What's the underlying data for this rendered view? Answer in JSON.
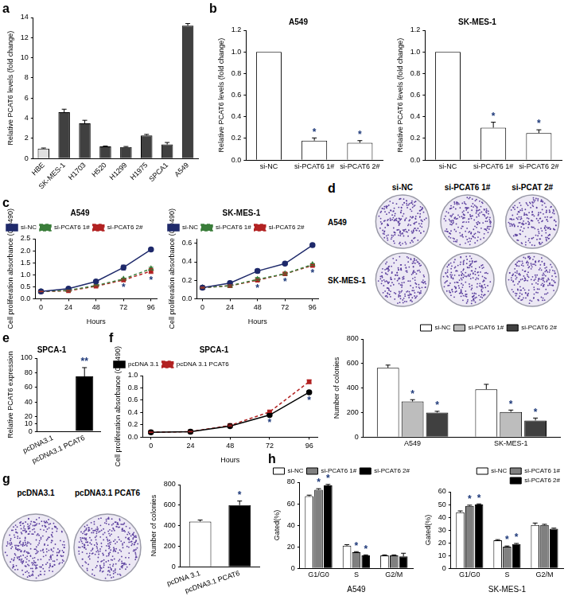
{
  "panel_labels": [
    "a",
    "b",
    "c",
    "d",
    "e",
    "f",
    "g",
    "h"
  ],
  "plates": [
    {
      "columns": [
        "si-NC",
        "si-PCAT6 1#",
        "si-PCAT 2#"
      ],
      "rows": [
        "A549",
        "SK-MES-1"
      ]
    },
    {
      "columns": [
        "pcDNA3.1",
        "pcDNA3.1 PCAT6"
      ]
    }
  ],
  "chart_data": [
    {
      "type": "bar",
      "ylabel": "Relative PCAT6 levels (fold change)",
      "categories": [
        "HBE",
        "SK-MES-1",
        "H1703",
        "H520",
        "H1299",
        "H1975",
        "SPCA1",
        "A549"
      ],
      "values": [
        1,
        4.6,
        3.5,
        1.2,
        1.15,
        2.3,
        1.4,
        13.2
      ],
      "errors": [
        0.05,
        0.3,
        0.3,
        0.05,
        0.05,
        0.1,
        0.2,
        0.2
      ],
      "colors": [
        "#e0e0e0",
        "#404040",
        "#404040",
        "#404040",
        "#404040",
        "#404040",
        "#404040",
        "#404040"
      ],
      "ylim": [
        0,
        14
      ],
      "yticks": [
        0,
        2,
        4,
        6,
        8,
        10,
        12,
        14
      ],
      "grid": false
    },
    {
      "type": "bar",
      "title": "A549",
      "ylabel": "Relative PCAT6 levels (fold change)",
      "categories": [
        "si-NC",
        "si-PCAT6 1#",
        "si-PCAT6 2#"
      ],
      "values": [
        1,
        0.18,
        0.16
      ],
      "errors": [
        0,
        0.025,
        0.02
      ],
      "significance": [
        null,
        "*",
        "*"
      ],
      "color": "#ffffff",
      "ylim": [
        0,
        1.2
      ],
      "yticks": [
        {
          "value": 0,
          "label": "0.0"
        },
        0.2,
        0.4,
        0.6,
        0.8,
        {
          "value": 1,
          "label": "1.0"
        },
        1.2
      ],
      "grid": false
    },
    {
      "type": "bar",
      "title": "SK-MES-1",
      "ylabel": "Relative PCAT6 levels (fold change)",
      "categories": [
        "si-NC",
        "si-PCAT6 1#",
        "si-PCAT6 2#"
      ],
      "values": [
        1,
        0.3,
        0.25
      ],
      "errors": [
        0,
        0.05,
        0.03
      ],
      "significance": [
        null,
        "*",
        "*"
      ],
      "color": "#ffffff",
      "ylim": [
        0,
        1.2
      ],
      "yticks": [
        {
          "value": 0,
          "label": "0.0"
        },
        0.2,
        0.4,
        0.6,
        0.8,
        {
          "value": 1,
          "label": "1.0"
        },
        1.2
      ],
      "grid": false
    },
    {
      "type": "line",
      "title": "A549",
      "xlabel": "Hours",
      "ylabel": "Cell proliferation absorbance (OD490)",
      "x": [
        0,
        24,
        48,
        72,
        96
      ],
      "xlim": [
        -5,
        101
      ],
      "xticks": [
        0,
        24,
        48,
        72,
        96
      ],
      "ylim": [
        0,
        2.5
      ],
      "yticks": [
        {
          "value": 0,
          "label": "0.0"
        },
        0.5,
        {
          "value": 1,
          "label": "1.0"
        },
        1.5,
        {
          "value": 2,
          "label": "2.0"
        },
        2.5
      ],
      "series": [
        {
          "name": "si-NC",
          "color": "#1f2a6b",
          "marker": "circle",
          "line_style": "solid",
          "values": [
            0.3,
            0.42,
            0.72,
            1.3,
            2.05
          ],
          "errors": [
            0.01,
            0.02,
            0.03,
            0.1,
            0.05
          ]
        },
        {
          "name": "si-PCAT6 1#",
          "color": "#3a7d3a",
          "marker": "triangle",
          "line_style": "dashed",
          "values": [
            0.3,
            0.35,
            0.55,
            0.82,
            1.25
          ],
          "errors": [
            0.01,
            0.02,
            0.02,
            0.03,
            0.06
          ]
        },
        {
          "name": "si-PCAT6 2#",
          "color": "#b22222",
          "marker": "square",
          "line_style": "dashed",
          "values": [
            0.3,
            0.33,
            0.52,
            0.78,
            1.15
          ],
          "errors": [
            0.01,
            0.02,
            0.02,
            0.03,
            0.1
          ]
        }
      ],
      "significance": [
        null,
        null,
        null,
        "*",
        "*"
      ],
      "legend": "upper left",
      "grid": false
    },
    {
      "type": "line",
      "title": "SK-MES-1",
      "xlabel": "Hours",
      "ylabel": "Cell proliferation absorbance (OD490)",
      "x": [
        0,
        24,
        48,
        72,
        96
      ],
      "xlim": [
        -5,
        101
      ],
      "xticks": [
        0,
        24,
        48,
        72,
        96
      ],
      "ylim": [
        0,
        0.65
      ],
      "yticks": [
        {
          "value": 0,
          "label": "0.0"
        },
        0.2,
        0.4,
        0.6
      ],
      "series": [
        {
          "name": "si-NC",
          "color": "#1f2a6b",
          "marker": "circle",
          "line_style": "solid",
          "values": [
            0.12,
            0.17,
            0.3,
            0.38,
            0.58
          ],
          "errors": [
            0.005,
            0.02,
            0.02,
            0.01,
            0.015
          ]
        },
        {
          "name": "si-PCAT6 1#",
          "color": "#3a7d3a",
          "marker": "triangle",
          "line_style": "dashed",
          "values": [
            0.12,
            0.14,
            0.21,
            0.27,
            0.37
          ],
          "errors": [
            0.005,
            0.01,
            0.02,
            0.01,
            0.01
          ]
        },
        {
          "name": "si-PCAT6 2#",
          "color": "#b22222",
          "marker": "square",
          "line_style": "dashed",
          "values": [
            0.12,
            0.14,
            0.2,
            0.27,
            0.36
          ],
          "errors": [
            0.005,
            0.01,
            0.01,
            0.01,
            0.01
          ]
        }
      ],
      "significance": [
        null,
        null,
        "*",
        "*",
        "*"
      ],
      "legend": "upper left",
      "grid": false
    },
    {
      "type": "bar",
      "ylabel": "Number of colonies",
      "categories": [
        "A549",
        "SK-MES-1"
      ],
      "series": [
        {
          "name": "si-NC",
          "color": "#ffffff",
          "values": [
            565,
            390
          ],
          "errors": [
            22,
            40
          ]
        },
        {
          "name": "si-PCAT6 1#",
          "color": "#bdbdbd",
          "values": [
            290,
            205
          ],
          "errors": [
            15,
            15
          ],
          "significance": [
            "*",
            "*"
          ]
        },
        {
          "name": "si-PCAT6 2#",
          "color": "#404040",
          "values": [
            200,
            135
          ],
          "errors": [
            10,
            20
          ],
          "significance": [
            "*",
            "*"
          ]
        }
      ],
      "ylim": [
        0,
        800
      ],
      "yticks": [
        0,
        200,
        400,
        600,
        800
      ],
      "legend": "upper right",
      "grid": false
    },
    {
      "type": "bar",
      "title": "SPCA-1",
      "ylabel": "Relative PCAT6 expression",
      "categories": [
        "pcDNA3.1",
        "pcDNA3.1 PCAT6"
      ],
      "values": [
        1,
        75
      ],
      "errors": [
        0,
        12
      ],
      "significance": [
        null,
        "**"
      ],
      "colors": [
        "#ffffff",
        "#000000"
      ],
      "ylim": [
        0,
        100
      ],
      "yticks": [
        0,
        10,
        20,
        40,
        60,
        80,
        100
      ],
      "grid": false
    },
    {
      "type": "line",
      "title": "SPCA-1",
      "xlabel": "Hours",
      "ylabel": "Cell proliferation absorbance (OD490)",
      "x": [
        0,
        24,
        48,
        72,
        96
      ],
      "xlim": [
        -5,
        101
      ],
      "xticks": [
        0,
        24,
        48,
        72,
        96
      ],
      "ylim": [
        0,
        1
      ],
      "yticks": [
        {
          "value": 0,
          "label": "0.0"
        },
        0.2,
        0.4,
        0.6,
        0.8,
        {
          "value": 1,
          "label": "1.0"
        }
      ],
      "series": [
        {
          "name": "pcDNA 3.1",
          "color": "#000000",
          "marker": "circle",
          "line_style": "solid",
          "values": [
            0.08,
            0.09,
            0.18,
            0.36,
            0.73
          ],
          "errors": [
            0.005,
            0.005,
            0.01,
            0.01,
            0.02
          ]
        },
        {
          "name": "pcDNA 3.1 PCAT6",
          "color": "#b22222",
          "marker": "square",
          "line_style": "dashed",
          "values": [
            0.08,
            0.09,
            0.19,
            0.41,
            0.9
          ],
          "errors": [
            0.005,
            0.005,
            0.01,
            0.01,
            0.03
          ]
        }
      ],
      "significance": [
        null,
        null,
        null,
        "*",
        "*"
      ],
      "legend": "upper left",
      "grid": false
    },
    {
      "type": "bar",
      "ylabel": "Number of colonies",
      "categories": [
        "pcDNA 3.1",
        "pcDNA3.1 PCAT6"
      ],
      "values": [
        440,
        600
      ],
      "errors": [
        15,
        40
      ],
      "significance": [
        null,
        "*"
      ],
      "colors": [
        "#ffffff",
        "#000000"
      ],
      "ylim": [
        0,
        800
      ],
      "yticks": [
        0,
        200,
        400,
        600,
        800
      ],
      "grid": false
    },
    {
      "type": "bar",
      "xlabel": "A549",
      "ylabel": "Gated(%)",
      "categories": [
        "G1/G0",
        "S",
        "G2/M"
      ],
      "series": [
        {
          "name": "si-NC",
          "color": "#ffffff",
          "values": [
            67,
            21,
            12
          ],
          "errors": [
            1,
            1,
            0.5
          ]
        },
        {
          "name": "si-PCAT6 1#",
          "color": "#808080",
          "values": [
            73,
            15,
            12
          ],
          "errors": [
            1,
            0.5,
            0.5
          ],
          "significance": [
            "*",
            "*",
            null
          ]
        },
        {
          "name": "si-PCAT6 2#",
          "color": "#000000",
          "values": [
            77,
            12,
            11
          ],
          "errors": [
            1,
            0.5,
            3
          ],
          "significance": [
            "*",
            "*",
            null
          ]
        }
      ],
      "ylim": [
        0,
        80
      ],
      "yticks": [
        0,
        20,
        40,
        60,
        80
      ],
      "legend": "upper right",
      "grid": false
    },
    {
      "type": "bar",
      "xlabel": "SK-MES-1",
      "ylabel": "Gated(%)",
      "categories": [
        "G1/G0",
        "S",
        "G2/M"
      ],
      "series": [
        {
          "name": "si-NC",
          "color": "#ffffff",
          "values": [
            44,
            22,
            34
          ],
          "errors": [
            1,
            0.5,
            1.5
          ]
        },
        {
          "name": "si-PCAT6 1#",
          "color": "#808080",
          "values": [
            49,
            17,
            34
          ],
          "errors": [
            0.5,
            0.5,
            0.5
          ],
          "significance": [
            "*",
            "*",
            null
          ]
        },
        {
          "name": "si-PCAT6 2#",
          "color": "#000000",
          "values": [
            50,
            19,
            31
          ],
          "errors": [
            0.5,
            0.5,
            0.5
          ],
          "significance": [
            "*",
            "*",
            null
          ]
        }
      ],
      "ylim": [
        0,
        60
      ],
      "yticks": [
        0,
        10,
        20,
        30,
        40,
        50,
        60
      ],
      "legend": "upper right",
      "grid": false
    }
  ]
}
